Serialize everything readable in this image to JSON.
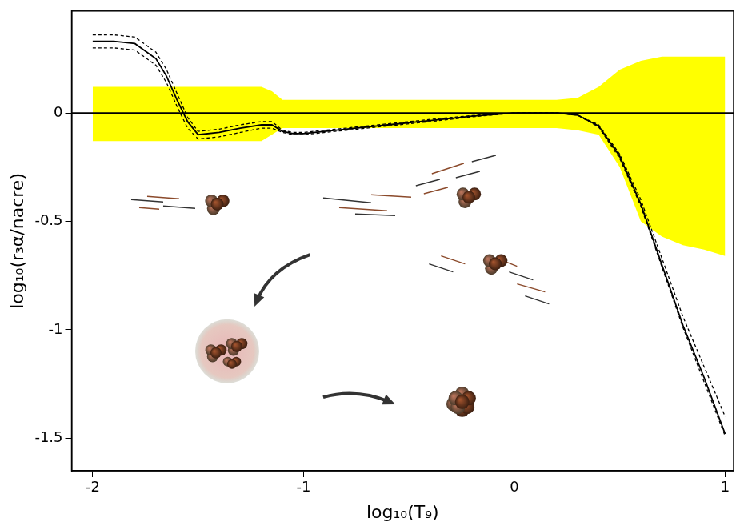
{
  "chart_data": {
    "type": "line",
    "x_label": "log₁₀(T₉)",
    "y_label": "log₁₀(r₃α/nacre)",
    "xlim": [
      -2.1,
      1.04
    ],
    "ylim": [
      -1.65,
      0.47
    ],
    "xticks": [
      -2,
      -1,
      0,
      1
    ],
    "yticks": [
      -1.5,
      -1,
      -0.5,
      0
    ],
    "grid": false,
    "band": {
      "color": "#ffff00",
      "x": [
        -2,
        -1.2,
        -1.15,
        -1.1,
        0.2,
        0.3,
        0.4,
        0.5,
        0.6,
        0.7,
        0.8,
        0.9,
        1.0
      ],
      "upper": [
        0.12,
        0.12,
        0.1,
        0.06,
        0.06,
        0.07,
        0.12,
        0.2,
        0.24,
        0.26,
        0.26,
        0.26,
        0.26
      ],
      "lower": [
        -0.13,
        -0.13,
        -0.1,
        -0.07,
        -0.07,
        -0.08,
        -0.1,
        -0.25,
        -0.5,
        -0.57,
        -0.61,
        -0.63,
        -0.66
      ]
    },
    "series": [
      {
        "color": "#000000",
        "line_style": "solid",
        "x": [
          -2.1,
          1.04
        ],
        "values": [
          0,
          0
        ]
      },
      {
        "color": "#000000",
        "line_style": "solid",
        "x": [
          -2,
          -1.9,
          -1.8,
          -1.7,
          -1.65,
          -1.6,
          -1.55,
          -1.5,
          -1.4,
          -1.3,
          -1.2,
          -1.15,
          -1.1,
          -1.05,
          -1,
          -0.8,
          -0.6,
          -0.4,
          -0.2,
          0,
          0.2,
          0.3,
          0.4,
          0.5,
          0.6,
          0.7,
          0.8,
          0.9,
          1.0
        ],
        "values": [
          0.33,
          0.33,
          0.32,
          0.25,
          0.17,
          0.06,
          -0.04,
          -0.1,
          -0.09,
          -0.07,
          -0.055,
          -0.055,
          -0.085,
          -0.095,
          -0.095,
          -0.075,
          -0.055,
          -0.035,
          -0.015,
          0,
          0,
          -0.01,
          -0.06,
          -0.2,
          -0.42,
          -0.7,
          -0.98,
          -1.22,
          -1.48
        ]
      },
      {
        "color": "#000000",
        "line_style": "dashed",
        "x": [
          -2,
          -1.9,
          -1.8,
          -1.7,
          -1.65,
          -1.6,
          -1.55,
          -1.5,
          -1.4,
          -1.3,
          -1.2,
          -1.15,
          -1.1,
          -1.05,
          -1,
          -0.8,
          -0.6,
          -0.4,
          -0.2,
          0,
          0.2,
          0.3,
          0.4,
          0.5,
          0.6,
          0.7,
          0.8,
          0.9,
          1.0
        ],
        "values": [
          0.36,
          0.36,
          0.35,
          0.28,
          0.2,
          0.09,
          -0.02,
          -0.085,
          -0.075,
          -0.055,
          -0.04,
          -0.04,
          -0.08,
          -0.09,
          -0.09,
          -0.07,
          -0.05,
          -0.03,
          -0.012,
          0,
          0,
          -0.01,
          -0.055,
          -0.19,
          -0.4,
          -0.67,
          -0.94,
          -1.17,
          -1.4
        ]
      },
      {
        "color": "#000000",
        "line_style": "dashed",
        "x": [
          -2,
          -1.9,
          -1.8,
          -1.7,
          -1.65,
          -1.6,
          -1.55,
          -1.5,
          -1.4,
          -1.3,
          -1.2,
          -1.15,
          -1.1,
          -1.05,
          -1,
          -0.8,
          -0.6,
          -0.4,
          -0.2,
          0,
          0.2,
          0.3,
          0.4,
          0.5,
          0.6,
          0.7,
          0.8,
          0.9,
          1.0
        ],
        "values": [
          0.3,
          0.3,
          0.29,
          0.22,
          0.14,
          0.03,
          -0.07,
          -0.12,
          -0.11,
          -0.09,
          -0.07,
          -0.07,
          -0.09,
          -0.1,
          -0.1,
          -0.08,
          -0.06,
          -0.04,
          -0.018,
          0,
          0,
          -0.01,
          -0.065,
          -0.21,
          -0.43,
          -0.71,
          -0.99,
          -1.24,
          -1.49
        ]
      }
    ]
  }
}
